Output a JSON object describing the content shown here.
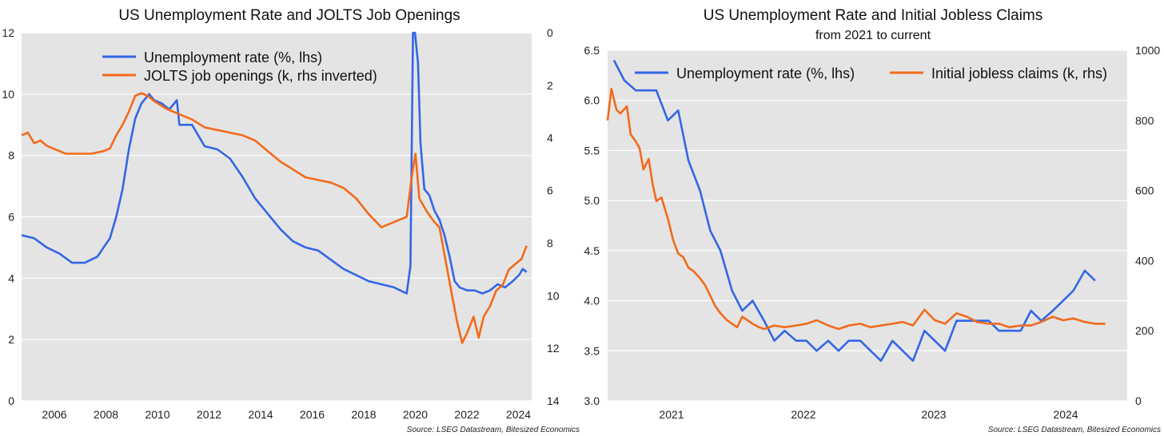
{
  "colors": {
    "blue": "#3366e6",
    "orange": "#f26a1b",
    "plot_bg": "#e4e4e4",
    "grid": "#ffffff"
  },
  "chart_data": [
    {
      "type": "line",
      "title": "US Unemployment Rate and JOLTS Job Openings",
      "source": "Source: LSEG Datastream, Bitesized Economics",
      "x_ticks": [
        "2006",
        "2008",
        "2010",
        "2012",
        "2014",
        "2016",
        "2018",
        "2020",
        "2022",
        "2024"
      ],
      "xlim": [
        2004.75,
        2024.95
      ],
      "y_left": {
        "ticks": [
          "0",
          "2",
          "4",
          "6",
          "8",
          "10",
          "12"
        ],
        "lim": [
          0,
          12
        ]
      },
      "y_right": {
        "ticks": [
          "0",
          "2",
          "4",
          "6",
          "8",
          "10",
          "12",
          "14"
        ],
        "lim": [
          0,
          14
        ],
        "inverted": true
      },
      "grid": true,
      "legend_position": "top-center",
      "series": [
        {
          "name": "Unemployment rate (%, lhs)",
          "color": "#3366e6",
          "axis": "left",
          "points": [
            [
              2004.75,
              5.4
            ],
            [
              2005.25,
              5.3
            ],
            [
              2005.75,
              5.0
            ],
            [
              2006.25,
              4.8
            ],
            [
              2006.75,
              4.5
            ],
            [
              2007.25,
              4.5
            ],
            [
              2007.75,
              4.7
            ],
            [
              2008.0,
              5.0
            ],
            [
              2008.25,
              5.3
            ],
            [
              2008.5,
              6.0
            ],
            [
              2008.75,
              6.9
            ],
            [
              2009.0,
              8.2
            ],
            [
              2009.25,
              9.2
            ],
            [
              2009.5,
              9.7
            ],
            [
              2009.8,
              10.0
            ],
            [
              2010.0,
              9.8
            ],
            [
              2010.3,
              9.7
            ],
            [
              2010.6,
              9.5
            ],
            [
              2010.9,
              9.8
            ],
            [
              2011.0,
              9.0
            ],
            [
              2011.5,
              9.0
            ],
            [
              2012.0,
              8.3
            ],
            [
              2012.5,
              8.2
            ],
            [
              2013.0,
              7.9
            ],
            [
              2013.5,
              7.3
            ],
            [
              2014.0,
              6.6
            ],
            [
              2014.5,
              6.1
            ],
            [
              2015.0,
              5.6
            ],
            [
              2015.5,
              5.2
            ],
            [
              2016.0,
              5.0
            ],
            [
              2016.5,
              4.9
            ],
            [
              2017.0,
              4.6
            ],
            [
              2017.5,
              4.3
            ],
            [
              2018.0,
              4.1
            ],
            [
              2018.5,
              3.9
            ],
            [
              2019.0,
              3.8
            ],
            [
              2019.5,
              3.7
            ],
            [
              2020.0,
              3.5
            ],
            [
              2020.15,
              4.4
            ],
            [
              2020.25,
              14.7
            ],
            [
              2020.33,
              13.2
            ],
            [
              2020.45,
              11.0
            ],
            [
              2020.55,
              8.4
            ],
            [
              2020.7,
              6.9
            ],
            [
              2020.9,
              6.7
            ],
            [
              2021.1,
              6.2
            ],
            [
              2021.3,
              5.9
            ],
            [
              2021.5,
              5.4
            ],
            [
              2021.7,
              4.7
            ],
            [
              2021.9,
              3.9
            ],
            [
              2022.1,
              3.7
            ],
            [
              2022.4,
              3.6
            ],
            [
              2022.7,
              3.6
            ],
            [
              2023.0,
              3.5
            ],
            [
              2023.3,
              3.6
            ],
            [
              2023.6,
              3.8
            ],
            [
              2023.9,
              3.7
            ],
            [
              2024.2,
              3.9
            ],
            [
              2024.45,
              4.1
            ],
            [
              2024.6,
              4.3
            ],
            [
              2024.75,
              4.2
            ]
          ]
        },
        {
          "name": "JOLTS job openings (k, rhs inverted)",
          "color": "#f26a1b",
          "axis": "right",
          "points": [
            [
              2004.75,
              3.9
            ],
            [
              2005.0,
              3.8
            ],
            [
              2005.25,
              4.2
            ],
            [
              2005.5,
              4.1
            ],
            [
              2005.75,
              4.3
            ],
            [
              2006.0,
              4.4
            ],
            [
              2006.5,
              4.6
            ],
            [
              2007.0,
              4.6
            ],
            [
              2007.5,
              4.6
            ],
            [
              2008.0,
              4.5
            ],
            [
              2008.25,
              4.4
            ],
            [
              2008.5,
              3.9
            ],
            [
              2008.75,
              3.5
            ],
            [
              2009.0,
              3.0
            ],
            [
              2009.25,
              2.4
            ],
            [
              2009.5,
              2.3
            ],
            [
              2009.75,
              2.4
            ],
            [
              2010.0,
              2.6
            ],
            [
              2010.5,
              2.9
            ],
            [
              2011.0,
              3.1
            ],
            [
              2011.5,
              3.3
            ],
            [
              2012.0,
              3.6
            ],
            [
              2012.5,
              3.7
            ],
            [
              2013.0,
              3.8
            ],
            [
              2013.5,
              3.9
            ],
            [
              2014.0,
              4.1
            ],
            [
              2014.5,
              4.5
            ],
            [
              2015.0,
              4.9
            ],
            [
              2015.5,
              5.2
            ],
            [
              2016.0,
              5.5
            ],
            [
              2016.5,
              5.6
            ],
            [
              2017.0,
              5.7
            ],
            [
              2017.5,
              5.9
            ],
            [
              2018.0,
              6.3
            ],
            [
              2018.5,
              6.9
            ],
            [
              2019.0,
              7.4
            ],
            [
              2019.5,
              7.2
            ],
            [
              2020.0,
              7.0
            ],
            [
              2020.2,
              5.5
            ],
            [
              2020.35,
              4.6
            ],
            [
              2020.5,
              6.3
            ],
            [
              2020.8,
              6.8
            ],
            [
              2021.1,
              7.2
            ],
            [
              2021.3,
              7.4
            ],
            [
              2021.55,
              8.7
            ],
            [
              2021.8,
              10.0
            ],
            [
              2022.0,
              11.0
            ],
            [
              2022.2,
              11.8
            ],
            [
              2022.4,
              11.4
            ],
            [
              2022.65,
              10.8
            ],
            [
              2022.85,
              11.6
            ],
            [
              2023.05,
              10.8
            ],
            [
              2023.3,
              10.4
            ],
            [
              2023.55,
              9.8
            ],
            [
              2023.8,
              9.6
            ],
            [
              2024.05,
              9.0
            ],
            [
              2024.3,
              8.8
            ],
            [
              2024.55,
              8.6
            ],
            [
              2024.75,
              8.1
            ]
          ]
        }
      ]
    },
    {
      "type": "line",
      "title": "US Unemployment Rate and Initial Jobless Claims",
      "subtitle": "from 2021 to current",
      "source": "Source: LSEG Datastream, Bitesized Economics",
      "x_ticks": [
        "2021",
        "2022",
        "2023",
        "2024"
      ],
      "xlim": [
        2020.45,
        2024.5
      ],
      "y_left": {
        "ticks": [
          "3.0",
          "3.5",
          "4.0",
          "4.5",
          "5.0",
          "5.5",
          "6.0",
          "6.5"
        ],
        "lim": [
          3.0,
          6.5
        ]
      },
      "y_right": {
        "ticks": [
          "0",
          "200",
          "400",
          "600",
          "800",
          "1000"
        ],
        "lim": [
          0,
          1000
        ]
      },
      "grid": true,
      "legend_position": "top",
      "series": [
        {
          "name": "Unemployment rate (%, lhs)",
          "color": "#3366e6",
          "axis": "left",
          "points": [
            [
              2020.5,
              6.4
            ],
            [
              2020.58,
              6.2
            ],
            [
              2020.67,
              6.1
            ],
            [
              2020.83,
              6.1
            ],
            [
              2020.92,
              5.8
            ],
            [
              2021.0,
              5.9
            ],
            [
              2021.08,
              5.4
            ],
            [
              2021.17,
              5.1
            ],
            [
              2021.25,
              4.7
            ],
            [
              2021.33,
              4.5
            ],
            [
              2021.42,
              4.1
            ],
            [
              2021.5,
              3.9
            ],
            [
              2021.58,
              4.0
            ],
            [
              2021.67,
              3.8
            ],
            [
              2021.75,
              3.6
            ],
            [
              2021.83,
              3.7
            ],
            [
              2021.92,
              3.6
            ],
            [
              2022.0,
              3.6
            ],
            [
              2022.08,
              3.5
            ],
            [
              2022.17,
              3.6
            ],
            [
              2022.25,
              3.5
            ],
            [
              2022.33,
              3.6
            ],
            [
              2022.42,
              3.6
            ],
            [
              2022.5,
              3.5
            ],
            [
              2022.58,
              3.4
            ],
            [
              2022.67,
              3.6
            ],
            [
              2022.75,
              3.5
            ],
            [
              2022.83,
              3.4
            ],
            [
              2022.92,
              3.7
            ],
            [
              2023.0,
              3.6
            ],
            [
              2023.08,
              3.5
            ],
            [
              2023.17,
              3.8
            ],
            [
              2023.25,
              3.8
            ],
            [
              2023.33,
              3.8
            ],
            [
              2023.42,
              3.8
            ],
            [
              2023.5,
              3.7
            ],
            [
              2023.58,
              3.7
            ],
            [
              2023.67,
              3.7
            ],
            [
              2023.75,
              3.9
            ],
            [
              2023.83,
              3.8
            ],
            [
              2023.92,
              3.9
            ],
            [
              2024.0,
              4.0
            ],
            [
              2024.08,
              4.1
            ],
            [
              2024.17,
              4.3
            ],
            [
              2024.25,
              4.2
            ]
          ]
        },
        {
          "name": "Initial jobless claims (k, rhs)",
          "color": "#f26a1b",
          "axis": "right",
          "points": [
            [
              2020.45,
              800
            ],
            [
              2020.48,
              890
            ],
            [
              2020.52,
              830
            ],
            [
              2020.55,
              820
            ],
            [
              2020.6,
              840
            ],
            [
              2020.63,
              760
            ],
            [
              2020.67,
              740
            ],
            [
              2020.7,
              720
            ],
            [
              2020.73,
              660
            ],
            [
              2020.77,
              690
            ],
            [
              2020.8,
              620
            ],
            [
              2020.83,
              570
            ],
            [
              2020.87,
              580
            ],
            [
              2020.92,
              520
            ],
            [
              2020.96,
              460
            ],
            [
              2021.0,
              420
            ],
            [
              2021.04,
              410
            ],
            [
              2021.08,
              380
            ],
            [
              2021.12,
              370
            ],
            [
              2021.17,
              350
            ],
            [
              2021.21,
              330
            ],
            [
              2021.25,
              300
            ],
            [
              2021.29,
              270
            ],
            [
              2021.33,
              250
            ],
            [
              2021.38,
              230
            ],
            [
              2021.42,
              220
            ],
            [
              2021.46,
              210
            ],
            [
              2021.5,
              240
            ],
            [
              2021.54,
              230
            ],
            [
              2021.58,
              220
            ],
            [
              2021.63,
              210
            ],
            [
              2021.67,
              205
            ],
            [
              2021.75,
              215
            ],
            [
              2021.83,
              210
            ],
            [
              2021.92,
              215
            ],
            [
              2022.0,
              220
            ],
            [
              2022.08,
              230
            ],
            [
              2022.17,
              215
            ],
            [
              2022.25,
              205
            ],
            [
              2022.33,
              215
            ],
            [
              2022.42,
              220
            ],
            [
              2022.5,
              210
            ],
            [
              2022.58,
              215
            ],
            [
              2022.67,
              220
            ],
            [
              2022.75,
              225
            ],
            [
              2022.83,
              215
            ],
            [
              2022.92,
              260
            ],
            [
              2023.0,
              230
            ],
            [
              2023.08,
              220
            ],
            [
              2023.17,
              250
            ],
            [
              2023.25,
              240
            ],
            [
              2023.33,
              225
            ],
            [
              2023.42,
              220
            ],
            [
              2023.5,
              220
            ],
            [
              2023.58,
              210
            ],
            [
              2023.67,
              215
            ],
            [
              2023.75,
              215
            ],
            [
              2023.83,
              225
            ],
            [
              2023.92,
              240
            ],
            [
              2024.0,
              230
            ],
            [
              2024.08,
              235
            ],
            [
              2024.17,
              225
            ],
            [
              2024.25,
              220
            ],
            [
              2024.33,
              220
            ]
          ]
        }
      ]
    }
  ]
}
